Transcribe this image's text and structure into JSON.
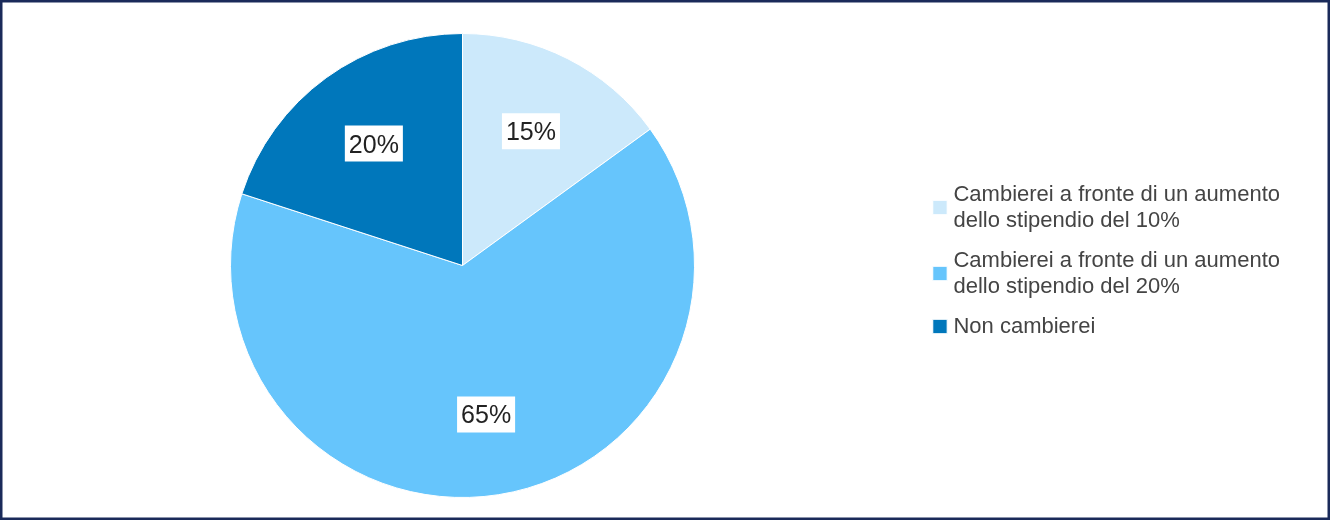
{
  "chart_data": {
    "type": "pie",
    "categories": [
      "Cambierei a fronte di un aumento dello stipendio del 10%",
      "Cambierei a fronte di un aumento dello stipendio del 20%",
      "Non cambierei"
    ],
    "values": [
      15,
      65,
      20
    ],
    "colors": [
      "#cce9fb",
      "#66c5fc",
      "#0077bb"
    ],
    "value_labels": [
      "15%",
      "65%",
      "20%"
    ],
    "legend": "right"
  }
}
